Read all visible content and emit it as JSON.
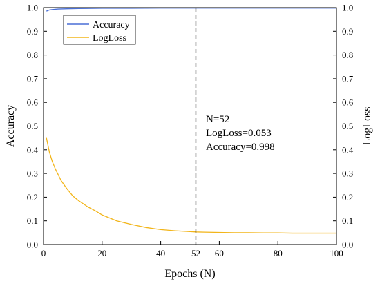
{
  "chart_data": {
    "type": "line",
    "xlabel": "Epochs (N)",
    "ylabel_left": "Accuracy",
    "ylabel_right": "LogLoss",
    "xlim": [
      0,
      100
    ],
    "ylim": [
      0,
      1.0
    ],
    "y2lim": [
      0,
      1.0
    ],
    "x_ticks": [
      "0",
      "20",
      "40",
      "52",
      "60",
      "80",
      "100"
    ],
    "x_tick_values": [
      0,
      20,
      40,
      52,
      60,
      80,
      100
    ],
    "y_ticks": [
      "0.0",
      "0.1",
      "0.2",
      "0.3",
      "0.4",
      "0.5",
      "0.6",
      "0.7",
      "0.8",
      "0.9",
      "1.0"
    ],
    "y_tick_values": [
      0.0,
      0.1,
      0.2,
      0.3,
      0.4,
      0.5,
      0.6,
      0.7,
      0.8,
      0.9,
      1.0
    ],
    "legend_position": "top-left",
    "series": [
      {
        "name": "Accuracy",
        "axis": "left",
        "color": "#4a6fd6",
        "x": [
          1,
          2,
          3,
          5,
          8,
          12,
          20,
          30,
          40,
          52,
          60,
          70,
          80,
          90,
          100
        ],
        "values": [
          0.985,
          0.99,
          0.992,
          0.994,
          0.995,
          0.996,
          0.997,
          0.997,
          0.998,
          0.998,
          0.998,
          0.998,
          0.998,
          0.998,
          0.998
        ]
      },
      {
        "name": "LogLoss",
        "axis": "right",
        "color": "#f2b51a",
        "x": [
          1,
          2,
          3,
          4,
          5,
          6,
          8,
          10,
          12,
          15,
          18,
          20,
          25,
          30,
          35,
          40,
          45,
          52,
          55,
          60,
          65,
          70,
          75,
          80,
          85,
          90,
          95,
          100
        ],
        "values": [
          0.45,
          0.39,
          0.35,
          0.32,
          0.295,
          0.27,
          0.235,
          0.205,
          0.185,
          0.16,
          0.14,
          0.125,
          0.1,
          0.085,
          0.072,
          0.063,
          0.058,
          0.053,
          0.052,
          0.051,
          0.05,
          0.05,
          0.049,
          0.049,
          0.048,
          0.048,
          0.048,
          0.048
        ]
      }
    ],
    "vline": {
      "x": 52,
      "style": "dashed"
    },
    "annotation": [
      "N=52",
      "LogLoss=0.053",
      "Accuracy=0.998"
    ]
  }
}
